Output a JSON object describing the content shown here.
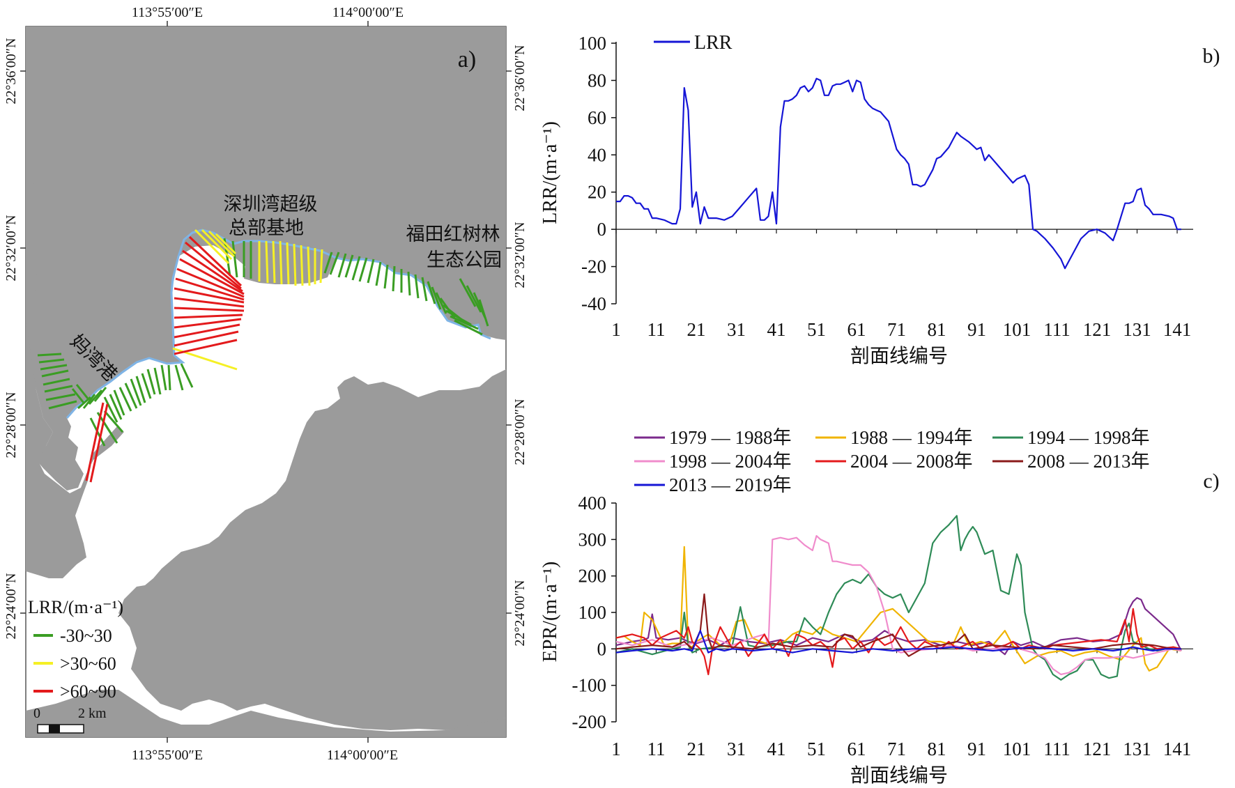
{
  "panel_a": {
    "label": "a)",
    "lon_ticks_top": [
      "113°55′00″E",
      "114°00′00″E"
    ],
    "lon_ticks_bottom": [
      "113°55′00″E",
      "114°00′00″E"
    ],
    "lat_ticks_left": [
      "22°36′00″N",
      "22°32′00″N",
      "22°28′00″N",
      "22°24′00″N"
    ],
    "lat_ticks_right": [
      "22°36′00″N",
      "22°32′00″N",
      "22°28′00″N",
      "22°24′00″N"
    ],
    "place_labels": {
      "hq_line1": "深圳湾超级",
      "hq_line2": "总部基地",
      "park_line1": "福田红树林",
      "park_line2": "生态公园",
      "port": "妈湾港"
    },
    "legend": {
      "title": "LRR/(m·a⁻¹)",
      "items": [
        {
          "label": "-30~30",
          "color": "#3a9d23"
        },
        {
          "label": ">30~60",
          "color": "#f5f025"
        },
        {
          "label": ">60~90",
          "color": "#e31a1c"
        }
      ]
    },
    "scale_bar": {
      "zero": "0",
      "length": "2 km"
    },
    "colors": {
      "land": "#9b9b9b",
      "sea": "#ffffff",
      "shoreline": "#7fb4e6"
    }
  },
  "chart_data": [
    {
      "id": "b",
      "type": "line",
      "panel_label": "b)",
      "xlabel": "剖面线编号",
      "ylabel": "LRR/(m·a⁻¹)",
      "xlim": [
        1,
        145
      ],
      "ylim": [
        -40,
        100
      ],
      "yticks": [
        -40,
        -20,
        0,
        20,
        40,
        60,
        80,
        100
      ],
      "xticks": [
        1,
        11,
        21,
        31,
        41,
        51,
        61,
        71,
        81,
        91,
        101,
        111,
        121,
        131,
        141
      ],
      "legend": "top-left",
      "series": [
        {
          "name": "LRR",
          "color": "#1515d6",
          "x": [
            1,
            2,
            3,
            4,
            5,
            6,
            7,
            8,
            9,
            10,
            11,
            13,
            15,
            16,
            17,
            18,
            19,
            20,
            21,
            22,
            23,
            24,
            26,
            28,
            30,
            32,
            34,
            36,
            37,
            38,
            39,
            40,
            41,
            42,
            43,
            44,
            45,
            46,
            47,
            48,
            49,
            50,
            51,
            52,
            53,
            54,
            55,
            56,
            57,
            58,
            59,
            60,
            61,
            62,
            63,
            64,
            65,
            66,
            67,
            69,
            71,
            72,
            73,
            74,
            75,
            76,
            77,
            78,
            79,
            80,
            81,
            82,
            84,
            85,
            86,
            87,
            89,
            90,
            91,
            92,
            93,
            94,
            96,
            98,
            100,
            101,
            103,
            104,
            105,
            106,
            107,
            108,
            110,
            112,
            113,
            115,
            117,
            119,
            121,
            123,
            125,
            126,
            128,
            129,
            130,
            131,
            132,
            133,
            134,
            135,
            137,
            139,
            140,
            141,
            142
          ],
          "values": [
            15,
            15,
            18,
            18,
            17,
            14,
            14,
            11,
            11,
            6,
            6,
            5,
            3,
            3,
            11,
            76,
            64,
            12,
            20,
            3,
            12,
            6,
            6,
            5,
            7,
            12,
            17,
            22,
            5,
            5,
            7,
            20,
            3,
            55,
            69,
            69,
            70,
            72,
            76,
            77,
            74,
            76,
            81,
            80,
            72,
            72,
            77,
            78,
            78,
            79,
            80,
            74,
            80,
            79,
            70,
            67,
            65,
            64,
            63,
            58,
            43,
            40,
            38,
            35,
            24,
            24,
            23,
            24,
            28,
            32,
            38,
            39,
            44,
            48,
            52,
            50,
            47,
            45,
            43,
            44,
            37,
            40,
            35,
            30,
            25,
            27,
            29,
            24,
            0,
            -1,
            -3,
            -5,
            -10,
            -16,
            -21,
            -13,
            -5,
            -1,
            0,
            -2,
            -6,
            0,
            14,
            14,
            15,
            21,
            22,
            13,
            11,
            8,
            8,
            7,
            6,
            0,
            0
          ]
        }
      ]
    },
    {
      "id": "c",
      "type": "line",
      "panel_label": "c)",
      "xlabel": "剖面线编号",
      "ylabel": "EPR/(m·a⁻¹)",
      "xlim": [
        1,
        145
      ],
      "ylim": [
        -200,
        400
      ],
      "yticks": [
        -200,
        -100,
        0,
        100,
        200,
        300,
        400
      ],
      "xticks": [
        1,
        11,
        21,
        31,
        41,
        51,
        61,
        71,
        81,
        91,
        101,
        111,
        121,
        131,
        141
      ],
      "legend": "top",
      "series": [
        {
          "name": "1979 — 1988年",
          "color": "#7b2a8c",
          "x": [
            1,
            5,
            8,
            9,
            10,
            11,
            14,
            17,
            19,
            21,
            24,
            27,
            30,
            34,
            38,
            42,
            46,
            50,
            54,
            58,
            62,
            65,
            68,
            71,
            74,
            78,
            82,
            86,
            90,
            94,
            98,
            100,
            102,
            105,
            108,
            112,
            116,
            120,
            124,
            127,
            129,
            130,
            131,
            132,
            133,
            135,
            137,
            140,
            142
          ],
          "values": [
            10,
            20,
            25,
            30,
            95,
            30,
            25,
            30,
            20,
            15,
            25,
            10,
            30,
            20,
            15,
            25,
            10,
            30,
            20,
            40,
            20,
            25,
            50,
            30,
            20,
            25,
            10,
            20,
            10,
            20,
            -15,
            20,
            10,
            20,
            5,
            25,
            30,
            20,
            25,
            40,
            110,
            130,
            140,
            135,
            110,
            90,
            70,
            40,
            -5
          ]
        },
        {
          "name": "1988 — 1994年",
          "color": "#f0b400",
          "x": [
            1,
            3,
            5,
            7,
            8,
            10,
            13,
            15,
            17,
            18,
            19,
            20,
            21,
            24,
            27,
            29,
            31,
            33,
            35,
            37,
            40,
            43,
            45,
            47,
            50,
            52,
            55,
            58,
            61,
            64,
            67,
            70,
            73,
            76,
            79,
            82,
            85,
            87,
            89,
            92,
            95,
            98,
            100,
            103,
            106,
            109,
            112,
            115,
            118,
            121,
            124,
            127,
            130,
            132,
            133,
            134,
            136,
            139,
            142
          ],
          "values": [
            30,
            35,
            20,
            10,
            100,
            80,
            10,
            15,
            15,
            280,
            10,
            5,
            20,
            40,
            10,
            5,
            75,
            80,
            30,
            20,
            10,
            20,
            40,
            50,
            40,
            60,
            40,
            30,
            20,
            60,
            100,
            110,
            80,
            50,
            20,
            20,
            10,
            60,
            10,
            20,
            10,
            50,
            10,
            -40,
            -20,
            -10,
            -5,
            -20,
            -10,
            -5,
            -20,
            -30,
            10,
            30,
            -40,
            -60,
            -50,
            0,
            -5
          ]
        },
        {
          "name": "1994 — 1998年",
          "color": "#2e8b57",
          "x": [
            1,
            5,
            10,
            15,
            17,
            18,
            19,
            20,
            22,
            26,
            30,
            32,
            34,
            36,
            40,
            44,
            46,
            48,
            50,
            52,
            54,
            56,
            58,
            60,
            62,
            64,
            66,
            68,
            70,
            72,
            74,
            76,
            78,
            80,
            82,
            84,
            86,
            87,
            88,
            89,
            90,
            91,
            93,
            95,
            97,
            99,
            101,
            102,
            103,
            105,
            106,
            108,
            110,
            112,
            114,
            116,
            118,
            120,
            122,
            124,
            126,
            127,
            128,
            129,
            130,
            132,
            134,
            136,
            138,
            140,
            142
          ],
          "values": [
            -10,
            0,
            -15,
            0,
            5,
            100,
            10,
            -10,
            0,
            5,
            10,
            115,
            10,
            5,
            10,
            20,
            20,
            85,
            60,
            40,
            100,
            150,
            180,
            190,
            180,
            205,
            170,
            150,
            140,
            150,
            100,
            140,
            180,
            290,
            320,
            340,
            365,
            270,
            300,
            320,
            335,
            320,
            260,
            270,
            160,
            150,
            260,
            230,
            100,
            0,
            -15,
            -30,
            -70,
            -85,
            -70,
            -60,
            -30,
            -30,
            -70,
            -80,
            -75,
            0,
            50,
            70,
            20,
            10,
            0,
            -5,
            0,
            5,
            0
          ]
        },
        {
          "name": "1998 — 2004年",
          "color": "#f08ccc",
          "x": [
            1,
            5,
            10,
            15,
            20,
            25,
            30,
            35,
            38,
            39,
            40,
            42,
            44,
            46,
            48,
            50,
            51,
            52,
            54,
            55,
            56,
            58,
            60,
            62,
            64,
            66,
            68,
            70,
            72,
            75,
            80,
            85,
            90,
            95,
            100,
            105,
            108,
            110,
            112,
            114,
            116,
            118,
            120,
            124,
            128,
            130,
            132,
            136,
            140,
            142
          ],
          "values": [
            20,
            10,
            25,
            5,
            15,
            30,
            10,
            30,
            40,
            10,
            300,
            305,
            300,
            305,
            285,
            270,
            310,
            300,
            290,
            240,
            240,
            235,
            230,
            230,
            210,
            170,
            100,
            0,
            -10,
            -5,
            0,
            10,
            -5,
            0,
            5,
            -10,
            -25,
            -55,
            -70,
            -65,
            -50,
            -30,
            -25,
            -25,
            -20,
            -25,
            -20,
            -10,
            0,
            -5
          ]
        },
        {
          "name": "2004 — 2008年",
          "color": "#e41a1c",
          "x": [
            1,
            3,
            5,
            8,
            10,
            12,
            14,
            16,
            18,
            19,
            20,
            22,
            23,
            24,
            25,
            26,
            27,
            28,
            30,
            32,
            34,
            36,
            38,
            40,
            42,
            44,
            46,
            48,
            50,
            52,
            54,
            55,
            56,
            58,
            60,
            62,
            64,
            66,
            68,
            70,
            72,
            74,
            76,
            78,
            80,
            82,
            84,
            86,
            88,
            90,
            92,
            94,
            96,
            98,
            100,
            102,
            104,
            106,
            108,
            110,
            114,
            118,
            122,
            126,
            128,
            129,
            130,
            131,
            132,
            134,
            136,
            140,
            142
          ],
          "values": [
            30,
            35,
            40,
            30,
            10,
            30,
            40,
            50,
            30,
            60,
            20,
            0,
            -20,
            -70,
            0,
            30,
            60,
            40,
            0,
            20,
            -20,
            10,
            40,
            0,
            25,
            -20,
            40,
            30,
            10,
            20,
            0,
            -50,
            20,
            30,
            0,
            20,
            -10,
            30,
            10,
            20,
            60,
            20,
            0,
            20,
            10,
            0,
            20,
            0,
            10,
            20,
            0,
            15,
            5,
            10,
            20,
            0,
            10,
            5,
            0,
            10,
            15,
            20,
            25,
            20,
            80,
            20,
            110,
            40,
            5,
            10,
            0,
            5,
            0
          ]
        },
        {
          "name": "2008 — 2013年",
          "color": "#8b1a1a",
          "x": [
            1,
            5,
            10,
            15,
            18,
            20,
            22,
            23,
            24,
            25,
            27,
            30,
            35,
            40,
            45,
            50,
            55,
            58,
            60,
            62,
            65,
            70,
            72,
            74,
            78,
            82,
            86,
            88,
            90,
            95,
            100,
            105,
            110,
            115,
            120,
            125,
            130,
            135,
            140,
            142
          ],
          "values": [
            0,
            5,
            10,
            5,
            20,
            0,
            50,
            150,
            30,
            0,
            10,
            5,
            0,
            15,
            5,
            10,
            5,
            40,
            35,
            5,
            20,
            40,
            5,
            -20,
            5,
            10,
            20,
            40,
            0,
            10,
            5,
            0,
            10,
            5,
            0,
            10,
            15,
            10,
            0,
            0
          ]
        },
        {
          "name": "2013 — 2019年",
          "color": "#1515d6",
          "x": [
            1,
            5,
            10,
            15,
            18,
            20,
            22,
            24,
            26,
            28,
            30,
            35,
            40,
            45,
            50,
            55,
            60,
            65,
            70,
            75,
            80,
            85,
            90,
            95,
            100,
            105,
            110,
            115,
            120,
            125,
            128,
            130,
            132,
            135,
            138,
            140,
            142
          ],
          "values": [
            -10,
            -5,
            0,
            -5,
            0,
            -5,
            50,
            -10,
            0,
            -5,
            0,
            -5,
            0,
            -10,
            0,
            -5,
            -10,
            0,
            -5,
            0,
            0,
            5,
            0,
            -5,
            0,
            5,
            0,
            -5,
            0,
            -5,
            0,
            5,
            0,
            -5,
            0,
            0,
            0
          ]
        }
      ]
    }
  ]
}
